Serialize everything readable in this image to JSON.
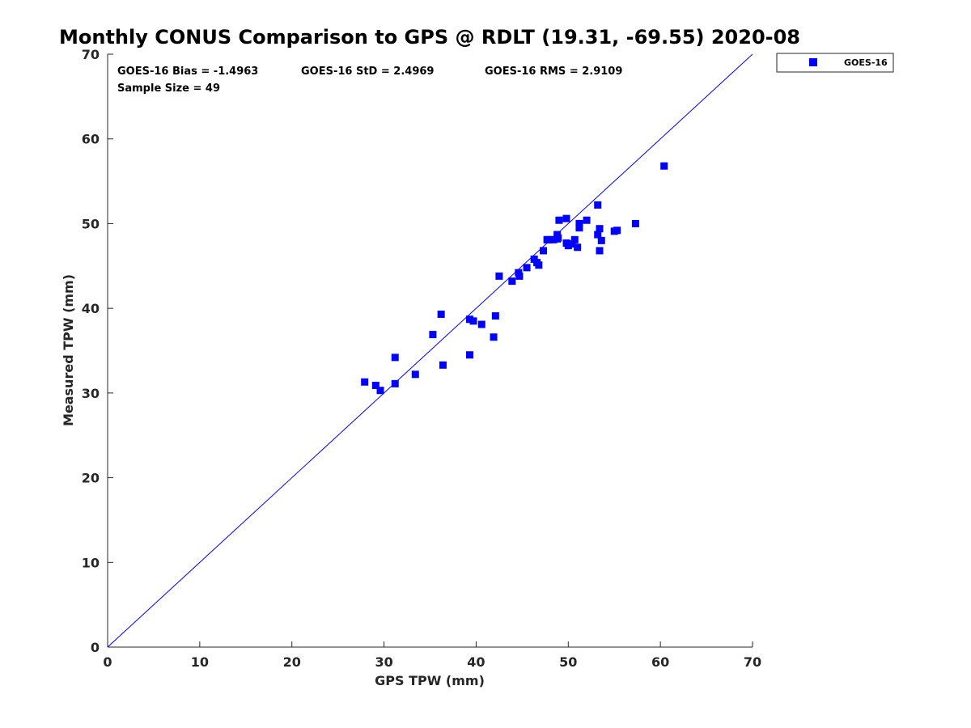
{
  "chart_data": {
    "type": "scatter",
    "title": "Monthly CONUS Comparison to GPS @ RDLT (19.31, -69.55) 2020-08",
    "xlabel": "GPS TPW (mm)",
    "ylabel": "Measured TPW (mm)",
    "xlim": [
      0,
      70
    ],
    "ylim": [
      0,
      70
    ],
    "xticks": [
      0,
      10,
      20,
      30,
      40,
      50,
      60,
      70
    ],
    "yticks": [
      0,
      10,
      20,
      30,
      40,
      50,
      60,
      70
    ],
    "xtick_labels": [
      "0",
      "10",
      "20",
      "30",
      "40",
      "50",
      "60",
      "70"
    ],
    "ytick_labels": [
      "0",
      "10",
      "20",
      "30",
      "40",
      "50",
      "60",
      "70"
    ],
    "grid": false,
    "legend_position": "outside-top-right",
    "reference_line": {
      "name": "1:1 line",
      "from": [
        0,
        0
      ],
      "to": [
        70,
        70
      ],
      "color": "#0000ff"
    },
    "series": [
      {
        "name": "GOES-16",
        "color": "#0000ff",
        "marker": "square",
        "x": [
          27.9,
          29.1,
          29.6,
          31.2,
          31.2,
          33.4,
          35.3,
          36.2,
          36.4,
          39.3,
          39.3,
          39.7,
          40.6,
          41.9,
          42.1,
          42.5,
          43.9,
          44.6,
          44.7,
          45.5,
          46.3,
          46.6,
          46.8,
          47.3,
          47.7,
          47.9,
          48.4,
          48.8,
          48.8,
          48.9,
          49.0,
          49.8,
          49.8,
          50.0,
          50.4,
          50.7,
          51.0,
          51.2,
          51.2,
          52.0,
          53.2,
          53.2,
          53.4,
          53.4,
          53.6,
          55.0,
          55.3,
          57.3,
          60.4
        ],
        "y": [
          31.3,
          30.9,
          30.3,
          34.2,
          31.1,
          32.2,
          36.9,
          39.3,
          33.3,
          38.7,
          34.5,
          38.5,
          38.1,
          36.6,
          39.1,
          43.8,
          43.2,
          44.2,
          43.8,
          44.8,
          45.8,
          45.4,
          45.1,
          46.8,
          48.1,
          48.1,
          48.1,
          48.2,
          48.7,
          48.3,
          50.4,
          50.6,
          47.7,
          47.4,
          47.6,
          48.1,
          47.2,
          50.0,
          49.5,
          50.4,
          52.2,
          48.7,
          49.4,
          46.8,
          48.0,
          49.1,
          49.2,
          50.0,
          56.8
        ]
      }
    ]
  },
  "stats": {
    "bias": "GOES-16 Bias = -1.4963",
    "std": "GOES-16 StD = 2.4969",
    "rms": "GOES-16 RMS = 2.9109",
    "sample_size": "Sample Size = 49"
  },
  "legend": {
    "label": "GOES-16"
  }
}
